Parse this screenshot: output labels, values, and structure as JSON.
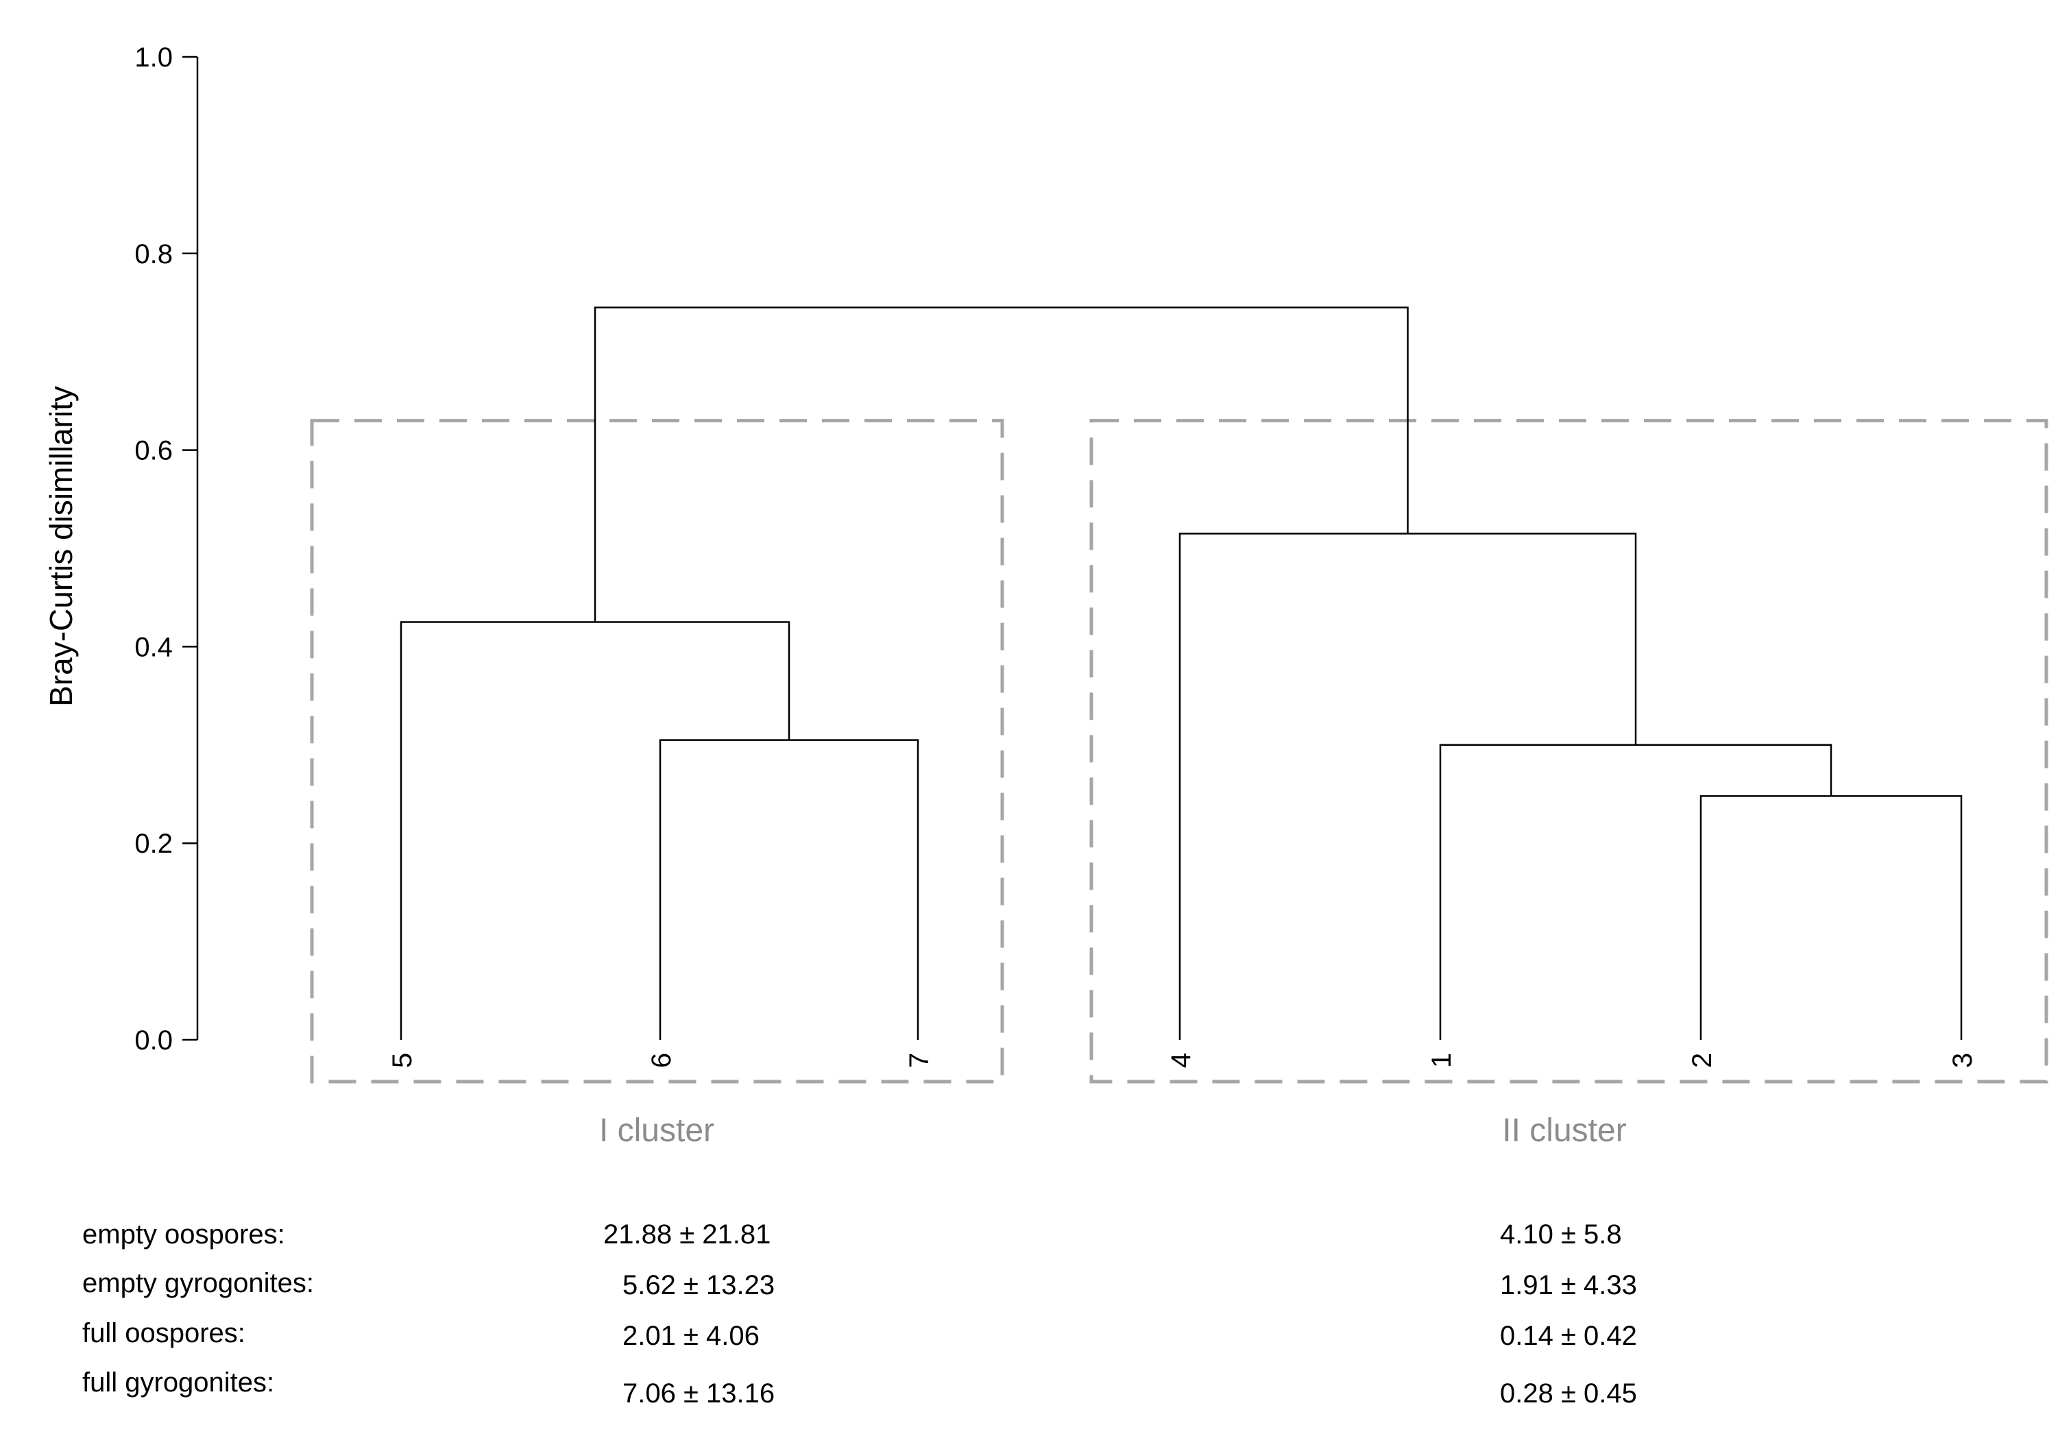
{
  "chart_data": {
    "type": "dendrogram",
    "ylabel": "Bray-Curtis disimillarity",
    "ylim": [
      0,
      1
    ],
    "yticks": [
      "0.0",
      "0.2",
      "0.4",
      "0.6",
      "0.8",
      "1.0"
    ],
    "leaves": [
      "5",
      "6",
      "7",
      "4",
      "1",
      "2",
      "3"
    ],
    "merges": [
      {
        "left": "6",
        "right": "7",
        "height": 0.305
      },
      {
        "left": "5",
        "right": "6+7",
        "height": 0.425
      },
      {
        "left": "2",
        "right": "3",
        "height": 0.248
      },
      {
        "left": "1",
        "right": "2+3",
        "height": 0.3
      },
      {
        "left": "4",
        "right": "1+2+3",
        "height": 0.515
      },
      {
        "left": "5+6+7",
        "right": "4+1+2+3",
        "height": 0.745
      }
    ],
    "clusters": [
      {
        "label": "I cluster",
        "members": [
          "5",
          "6",
          "7"
        ],
        "box_top": 0.63
      },
      {
        "label": "II cluster",
        "members": [
          "4",
          "1",
          "2",
          "3"
        ],
        "box_top": 0.63
      }
    ],
    "box_color": "#a6a6a6",
    "cluster_label_color": "#8c8c8c"
  },
  "stats_table": {
    "rows": [
      {
        "label": "empty oospores:",
        "cluster1": "21.88 ± 21.81",
        "cluster2": "4.10 ± 5.8"
      },
      {
        "label": "empty gyrogonites:",
        "cluster1": "5.62 ± 13.23",
        "cluster2": "1.91 ± 4.33"
      },
      {
        "label": "full oospores:",
        "cluster1": "2.01 ± 4.06",
        "cluster2": "0.14 ± 0.42"
      },
      {
        "label": "full gyrogonites:",
        "cluster1": "7.06 ± 13.16",
        "cluster2": "0.28 ± 0.45"
      }
    ]
  }
}
